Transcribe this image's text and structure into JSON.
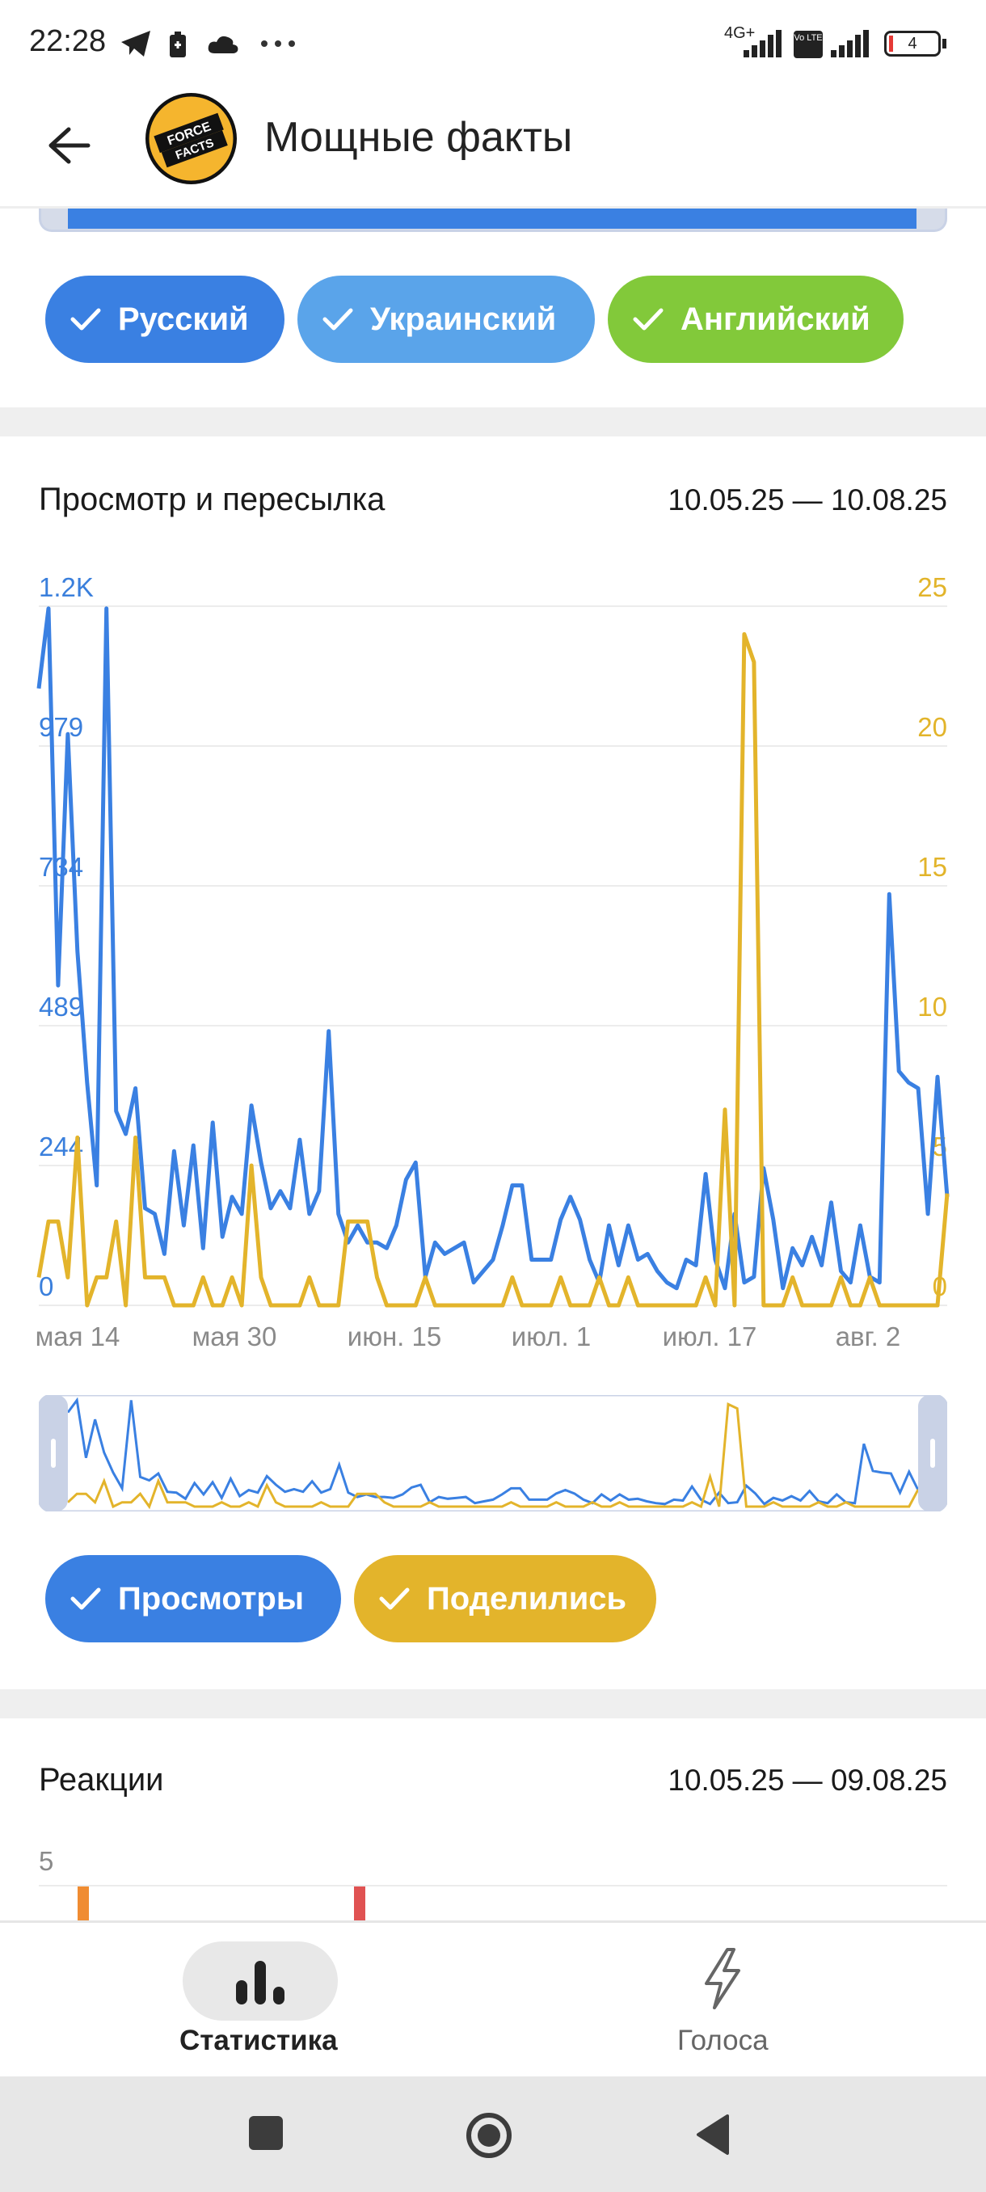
{
  "status_bar": {
    "time": "22:28",
    "network": "4G+",
    "volte": "Vo LTE",
    "battery": "4",
    "icons": [
      "telegram-icon",
      "battery-saver-icon",
      "cloud-icon",
      "more-icon",
      "signal-icon",
      "signal-icon",
      "battery-icon"
    ]
  },
  "app_bar": {
    "title": "Мощные факты",
    "avatar_text_1": "FORCE",
    "avatar_text_2": "FACTS"
  },
  "language_chips": [
    {
      "label": "Русский",
      "color": "#3a80e2"
    },
    {
      "label": "Украинский",
      "color": "#5aa4ea"
    },
    {
      "label": "Английский",
      "color": "#82c93a"
    }
  ],
  "views_section": {
    "title": "Просмотр и пересылка",
    "date_range": "10.05.25 — 10.08.25",
    "series_toggles": [
      {
        "label": "Просмотры",
        "color": "#3a80e2"
      },
      {
        "label": "Поделились",
        "color": "#e3b42b"
      }
    ]
  },
  "chart_data": {
    "type": "line",
    "left_axis_ticks": [
      "1.2K",
      "979",
      "734",
      "489",
      "244",
      "0"
    ],
    "right_axis_ticks": [
      "25",
      "20",
      "15",
      "10",
      "5",
      "0"
    ],
    "x_tick_labels": [
      "мая 14",
      "мая 30",
      "июн. 15",
      "июл. 1",
      "июл. 17",
      "авг. 2"
    ],
    "left_ylim": [
      0,
      1224
    ],
    "right_ylim": [
      0,
      25
    ],
    "series": [
      {
        "name": "Просмотры",
        "axis": "left",
        "color": "#3a80e2",
        "values": [
          1080,
          1220,
          560,
          1000,
          620,
          390,
          210,
          1220,
          340,
          300,
          380,
          170,
          160,
          90,
          270,
          140,
          280,
          100,
          320,
          120,
          190,
          160,
          350,
          250,
          170,
          200,
          170,
          290,
          160,
          200,
          480,
          160,
          110,
          140,
          110,
          110,
          100,
          140,
          220,
          250,
          50,
          110,
          90,
          100,
          110,
          40,
          60,
          80,
          140,
          210,
          210,
          80,
          80,
          80,
          150,
          190,
          150,
          80,
          40,
          140,
          70,
          140,
          80,
          90,
          60,
          40,
          30,
          80,
          70,
          230,
          80,
          30,
          160,
          40,
          50,
          240,
          150,
          30,
          100,
          70,
          120,
          70,
          180,
          60,
          40,
          140,
          50,
          40,
          720,
          410,
          390,
          380,
          160,
          400,
          190
        ]
      },
      {
        "name": "Поделились",
        "axis": "right",
        "color": "#e3b42b",
        "values": [
          1,
          3,
          3,
          1,
          6,
          0,
          1,
          1,
          3,
          0,
          6,
          1,
          1,
          1,
          0,
          0,
          0,
          1,
          0,
          0,
          1,
          0,
          5,
          1,
          0,
          0,
          0,
          0,
          1,
          0,
          0,
          0,
          3,
          3,
          3,
          1,
          0,
          0,
          0,
          0,
          1,
          0,
          0,
          0,
          0,
          0,
          0,
          0,
          0,
          1,
          0,
          0,
          0,
          0,
          1,
          0,
          0,
          0,
          1,
          0,
          0,
          1,
          0,
          0,
          0,
          0,
          0,
          0,
          0,
          1,
          0,
          7,
          0,
          24,
          23,
          0,
          0,
          0,
          1,
          0,
          0,
          0,
          0,
          1,
          0,
          0,
          1,
          0,
          0,
          0,
          0,
          0,
          0,
          0,
          4
        ]
      }
    ],
    "grid": true
  },
  "reactions_section": {
    "title": "Реакции",
    "date_range": "10.05.25 — 09.08.25",
    "axis_tick": "5"
  },
  "bottom_nav": {
    "stats_label": "Статистика",
    "votes_label": "Голоса"
  }
}
